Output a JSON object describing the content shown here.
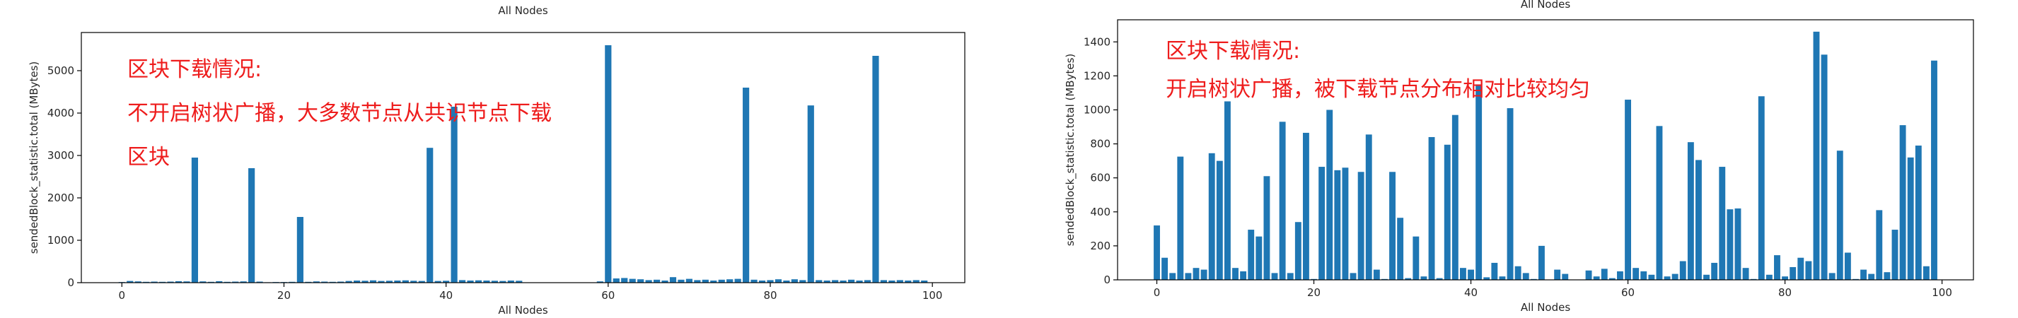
{
  "chart_data": [
    {
      "type": "bar",
      "title": "All Nodes",
      "xlabel": "All Nodes",
      "ylabel": "sendedBlock_statistic.total (MBytes)",
      "xlim": [
        -5,
        104
      ],
      "ylim": [
        0,
        5900
      ],
      "xticks": [
        0,
        20,
        40,
        60,
        80,
        100
      ],
      "yticks": [
        0,
        1000,
        2000,
        3000,
        4000,
        5000
      ],
      "grid": false,
      "annotation": [
        "区块下载情况:",
        "不开启树状广播，大多数节点从共识节点下载",
        "区块"
      ],
      "x": [
        0,
        1,
        2,
        3,
        4,
        5,
        6,
        7,
        8,
        9,
        10,
        11,
        12,
        13,
        14,
        15,
        16,
        17,
        18,
        19,
        20,
        21,
        22,
        23,
        24,
        25,
        26,
        27,
        28,
        29,
        30,
        31,
        32,
        33,
        34,
        35,
        36,
        37,
        38,
        39,
        40,
        41,
        42,
        43,
        44,
        45,
        46,
        47,
        48,
        49,
        50,
        51,
        52,
        53,
        54,
        55,
        56,
        57,
        58,
        59,
        60,
        61,
        62,
        63,
        64,
        65,
        66,
        67,
        68,
        69,
        70,
        71,
        72,
        73,
        74,
        75,
        76,
        77,
        78,
        79,
        80,
        81,
        82,
        83,
        84,
        85,
        86,
        87,
        88,
        89,
        90,
        91,
        92,
        93,
        94,
        95,
        96,
        97,
        98,
        99
      ],
      "values": [
        15,
        40,
        30,
        20,
        25,
        20,
        25,
        35,
        30,
        2950,
        30,
        20,
        35,
        20,
        25,
        30,
        2700,
        25,
        10,
        15,
        15,
        20,
        1550,
        20,
        30,
        25,
        20,
        25,
        40,
        50,
        45,
        55,
        40,
        45,
        50,
        55,
        45,
        40,
        3180,
        40,
        45,
        4150,
        60,
        50,
        55,
        50,
        45,
        40,
        50,
        45,
        0,
        0,
        0,
        0,
        0,
        0,
        0,
        0,
        0,
        30,
        5600,
        100,
        110,
        90,
        80,
        60,
        70,
        50,
        130,
        70,
        90,
        60,
        70,
        50,
        70,
        80,
        90,
        4600,
        70,
        50,
        60,
        80,
        50,
        80,
        60,
        4180,
        60,
        50,
        60,
        50,
        70,
        50,
        60,
        5350,
        60,
        50,
        60,
        50,
        60,
        50
      ]
    },
    {
      "type": "bar",
      "title": "All Nodes",
      "xlabel": "All Nodes",
      "ylabel": "sendedBlock_statistic.total (MBytes)",
      "xlim": [
        -5,
        104
      ],
      "ylim": [
        0,
        1530
      ],
      "xticks": [
        0,
        20,
        40,
        60,
        80,
        100
      ],
      "yticks": [
        0,
        200,
        400,
        600,
        800,
        1000,
        1200,
        1400
      ],
      "grid": false,
      "annotation": [
        "区块下载情况:",
        "开启树状广播，被下载节点分布相对比较均匀"
      ],
      "x": [
        0,
        1,
        2,
        3,
        4,
        5,
        6,
        7,
        8,
        9,
        10,
        11,
        12,
        13,
        14,
        15,
        16,
        17,
        18,
        19,
        20,
        21,
        22,
        23,
        24,
        25,
        26,
        27,
        28,
        29,
        30,
        31,
        32,
        33,
        34,
        35,
        36,
        37,
        38,
        39,
        40,
        41,
        42,
        43,
        44,
        45,
        46,
        47,
        48,
        49,
        50,
        51,
        52,
        53,
        54,
        55,
        56,
        57,
        58,
        59,
        60,
        61,
        62,
        63,
        64,
        65,
        66,
        67,
        68,
        69,
        70,
        71,
        72,
        73,
        74,
        75,
        76,
        77,
        78,
        79,
        80,
        81,
        82,
        83,
        84,
        85,
        86,
        87,
        88,
        89,
        90,
        91,
        92,
        93,
        94,
        95,
        96,
        97,
        98,
        99
      ],
      "values": [
        320,
        130,
        40,
        725,
        40,
        70,
        60,
        745,
        700,
        1050,
        70,
        50,
        295,
        255,
        610,
        40,
        930,
        40,
        340,
        865,
        5,
        665,
        1000,
        645,
        660,
        40,
        635,
        855,
        60,
        5,
        635,
        365,
        10,
        255,
        20,
        840,
        10,
        795,
        970,
        70,
        60,
        1150,
        15,
        100,
        20,
        1010,
        80,
        40,
        5,
        200,
        0,
        60,
        35,
        0,
        0,
        55,
        20,
        65,
        10,
        50,
        1060,
        70,
        50,
        30,
        905,
        20,
        35,
        110,
        810,
        705,
        30,
        100,
        665,
        415,
        420,
        70,
        5,
        1080,
        30,
        145,
        20,
        75,
        130,
        110,
        1460,
        1325,
        40,
        760,
        160,
        5,
        60,
        35,
        410,
        45,
        295,
        910,
        720,
        790,
        80,
        1290
      ]
    }
  ]
}
